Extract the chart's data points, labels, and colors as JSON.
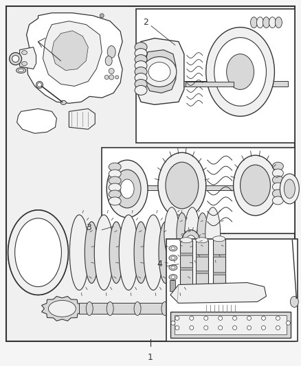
{
  "background_color": "#f5f5f5",
  "line_color": "#333333",
  "fill_white": "#ffffff",
  "fill_light": "#f0f0f0",
  "fill_medium": "#d8d8d8",
  "fill_dark": "#b0b0b0",
  "label_1": "1",
  "label_2": "2",
  "label_3": "3",
  "label_4": "4",
  "fig_width": 4.38,
  "fig_height": 5.33,
  "dpi": 100
}
